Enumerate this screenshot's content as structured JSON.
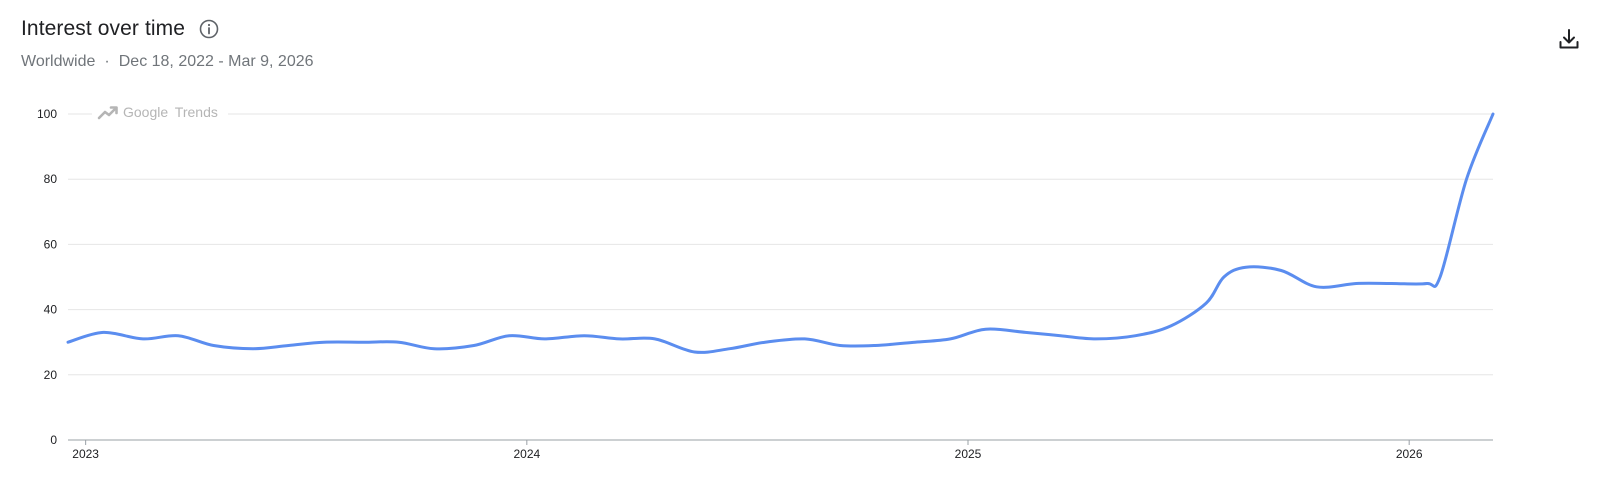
{
  "header": {
    "title": "Interest over time",
    "region": "Worldwide",
    "separator": "·",
    "date_range": "Dec 18, 2022 - Mar 9, 2026"
  },
  "icons": {
    "info": "info-icon",
    "download": "download-icon",
    "trends_logo": "google-trends-logo-icon"
  },
  "watermark": {
    "brand": "Google",
    "product": "Trends"
  },
  "colors": {
    "line": "#5b8def",
    "grid": "#e6e6e6",
    "axis": "#9aa0a6",
    "text": "#202124",
    "muted": "#70757a"
  },
  "chart_data": {
    "type": "line",
    "title": "",
    "xlabel": "",
    "ylabel": "",
    "ylim": [
      0,
      100
    ],
    "yticks": [
      0,
      20,
      40,
      60,
      80,
      100
    ],
    "xlim": [
      2022.96,
      2026.19
    ],
    "xticks": [
      {
        "label": "2023",
        "value": 2023
      },
      {
        "label": "2024",
        "value": 2024
      },
      {
        "label": "2025",
        "value": 2025
      },
      {
        "label": "2026",
        "value": 2026
      }
    ],
    "grid": true,
    "series": [
      {
        "values": [
          [
            2022.96,
            30
          ],
          [
            2023.04,
            33
          ],
          [
            2023.13,
            31
          ],
          [
            2023.21,
            32
          ],
          [
            2023.29,
            29
          ],
          [
            2023.38,
            28
          ],
          [
            2023.46,
            29
          ],
          [
            2023.54,
            30
          ],
          [
            2023.63,
            30
          ],
          [
            2023.71,
            30
          ],
          [
            2023.79,
            28
          ],
          [
            2023.88,
            29
          ],
          [
            2023.96,
            32
          ],
          [
            2024.04,
            31
          ],
          [
            2024.13,
            32
          ],
          [
            2024.21,
            31
          ],
          [
            2024.29,
            31
          ],
          [
            2024.38,
            27
          ],
          [
            2024.46,
            28
          ],
          [
            2024.54,
            30
          ],
          [
            2024.63,
            31
          ],
          [
            2024.71,
            29
          ],
          [
            2024.79,
            29
          ],
          [
            2024.88,
            30
          ],
          [
            2024.96,
            31
          ],
          [
            2025.04,
            34
          ],
          [
            2025.13,
            33
          ],
          [
            2025.21,
            32
          ],
          [
            2025.29,
            31
          ],
          [
            2025.38,
            32
          ],
          [
            2025.46,
            35
          ],
          [
            2025.54,
            42
          ],
          [
            2025.58,
            50
          ],
          [
            2025.63,
            53
          ],
          [
            2025.71,
            52
          ],
          [
            2025.79,
            47
          ],
          [
            2025.88,
            48
          ],
          [
            2025.96,
            48
          ],
          [
            2026.04,
            48
          ],
          [
            2026.07,
            50
          ],
          [
            2026.13,
            80
          ],
          [
            2026.19,
            100
          ]
        ]
      }
    ]
  }
}
